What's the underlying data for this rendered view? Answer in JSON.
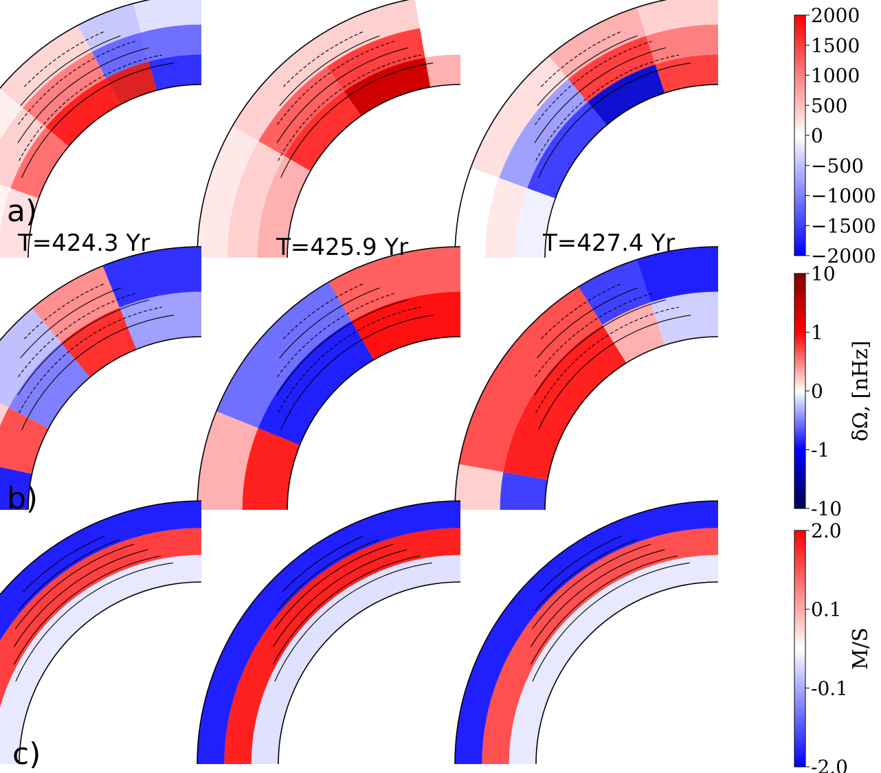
{
  "figure": {
    "row_labels": [
      "a)",
      "b)",
      "c)"
    ],
    "time_labels": [
      "T=424.3 Yr",
      "T=425.9 Yr",
      "T=427.4 Yr"
    ]
  },
  "chart_data": [
    {
      "type": "heatmap",
      "row": "a",
      "description_of_panels": "meridional quarter-shell plots, colour field with black contours (solid positive, dashed negative)",
      "colorbar": {
        "ticks": [
          "2000",
          "1500",
          "1000",
          "500",
          "0",
          "−500",
          "−1000",
          "−1500",
          "−2000"
        ],
        "range": [
          -2000,
          2000
        ],
        "label": "",
        "colormap": "bwr"
      },
      "panels": [
        "T=424.3 Yr",
        "T=425.9 Yr",
        "T=427.4 Yr"
      ]
    },
    {
      "type": "heatmap",
      "row": "b",
      "colorbar": {
        "ticks": [
          "10",
          "1",
          "0",
          "-1",
          "-10"
        ],
        "label": "δΩ, [nHz]",
        "colormap": "seismic",
        "scale": "symlog"
      },
      "panels": [
        "T=424.3 Yr",
        "T=425.9 Yr",
        "T=427.4 Yr"
      ]
    },
    {
      "type": "heatmap",
      "row": "c",
      "colorbar": {
        "ticks": [
          "2.0",
          "0.1",
          "-0.1",
          "-2.0"
        ],
        "label": "M/S",
        "colormap": "bwr",
        "scale": "symlog"
      },
      "panels": [
        "T=424.3 Yr",
        "T=425.9 Yr",
        "T=427.4 Yr"
      ]
    }
  ],
  "colors": {
    "red": "#ff0000",
    "blue": "#0000ff",
    "white": "#ffffff",
    "dark_red": "#800000",
    "dark_blue": "#000033"
  }
}
